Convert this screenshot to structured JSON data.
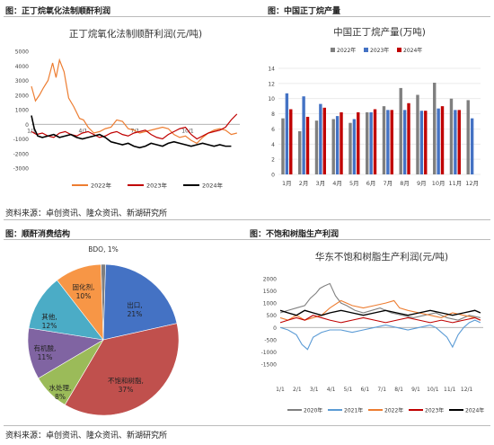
{
  "panels": {
    "p1_title": "图：正丁烷氧化法制顺酐利润",
    "p2_title": "图：中国正丁烷产量",
    "p3_title": "图：顺酐消费结构",
    "p4_title": "图：不饱和树脂生产利润"
  },
  "source_top": "资料来源：卓创资讯、隆众资讯、新湖研究所",
  "source_bottom": "资料来源：卓创资讯、隆众资讯、新湖研究所",
  "colors": {
    "c2020": "#808080",
    "c2021": "#5b9bd5",
    "c2022": "#ed7d31",
    "c2023": "#c00000",
    "c2024": "#000000",
    "bar2022": "#7f7f7f",
    "bar2023": "#4472c4",
    "bar2024": "#c00000"
  },
  "chart_data": [
    {
      "id": "profit",
      "type": "line",
      "title": "正丁烷氧化法制顺酐利润(元/吨)",
      "ylim": [
        -3000,
        5000
      ],
      "yticks": [
        "5000",
        "4000",
        "3000",
        "2000",
        "1000",
        "0",
        "-1000",
        "-2000",
        "-3000"
      ],
      "xticks": [
        "1/1",
        "4/1",
        "7/1",
        "10/1"
      ],
      "legend": [
        "2022年",
        "2023年",
        "2024年"
      ],
      "series": [
        {
          "name": "2022年",
          "x": [
            1,
            8,
            15,
            22,
            30,
            38,
            44,
            50,
            58,
            66,
            75,
            85,
            92,
            100,
            110,
            120,
            130,
            140,
            150,
            160,
            170,
            180,
            190,
            200,
            210,
            220,
            230,
            240,
            250,
            260,
            270,
            280,
            290,
            300,
            310,
            320,
            330,
            340,
            350,
            360
          ],
          "values": [
            2600,
            1600,
            2000,
            2500,
            3000,
            4200,
            3200,
            4400,
            3600,
            1800,
            1200,
            400,
            300,
            -200,
            -600,
            -500,
            -300,
            -200,
            300,
            200,
            -300,
            -400,
            -600,
            -500,
            -400,
            -300,
            -200,
            -300,
            -700,
            -900,
            -800,
            -1100,
            -1300,
            -900,
            -600,
            -400,
            -300,
            -400,
            -700,
            -600
          ]
        },
        {
          "name": "2023年",
          "x": [
            1,
            10,
            20,
            30,
            40,
            50,
            60,
            70,
            80,
            90,
            100,
            110,
            120,
            130,
            140,
            150,
            160,
            170,
            180,
            190,
            200,
            210,
            220,
            230,
            240,
            250,
            260,
            270,
            280,
            290,
            300,
            310,
            320,
            330,
            340,
            350,
            360
          ],
          "values": [
            -500,
            -700,
            -600,
            -800,
            -900,
            -600,
            -500,
            -700,
            -800,
            -600,
            -500,
            -700,
            -900,
            -800,
            -600,
            -500,
            -700,
            -800,
            -600,
            -500,
            -400,
            -700,
            -900,
            -1000,
            -700,
            -500,
            -300,
            -200,
            -700,
            -1000,
            -800,
            -600,
            -500,
            -400,
            -200,
            300,
            700
          ]
        },
        {
          "name": "2024年",
          "x": [
            1,
            6,
            12,
            20,
            30,
            40,
            50,
            60,
            70,
            80,
            90,
            100,
            110,
            120,
            130,
            140,
            150,
            160,
            170,
            180,
            190,
            200,
            210,
            220,
            230,
            240,
            250,
            260,
            270,
            280,
            290,
            300,
            310,
            320,
            330,
            340,
            350
          ],
          "values": [
            600,
            -300,
            -800,
            -900,
            -800,
            -700,
            -900,
            -800,
            -700,
            -900,
            -1000,
            -900,
            -800,
            -700,
            -900,
            -1200,
            -1300,
            -1400,
            -1300,
            -1500,
            -1600,
            -1500,
            -1300,
            -1400,
            -1500,
            -1300,
            -1200,
            -1300,
            -1400,
            -1500,
            -1400,
            -1300,
            -1400,
            -1500,
            -1400,
            -1500,
            -1500
          ]
        }
      ]
    },
    {
      "id": "output",
      "type": "bar",
      "title": "中国正丁烷产量(万吨)",
      "ylim": [
        0,
        14
      ],
      "yticks": [
        "14",
        "12",
        "10",
        "8",
        "6",
        "4",
        "2",
        "0"
      ],
      "categories": [
        "1月",
        "2月",
        "3月",
        "4月",
        "5月",
        "6月",
        "7月",
        "8月",
        "9月",
        "10月",
        "11月",
        "12月"
      ],
      "legend": [
        "2022年",
        "2023年",
        "2024年"
      ],
      "series": [
        {
          "name": "2022年",
          "values": [
            7.4,
            5.7,
            7.1,
            7.3,
            6.8,
            8.2,
            9.0,
            11.4,
            10.5,
            12.1,
            10.0,
            9.8
          ]
        },
        {
          "name": "2023年",
          "values": [
            10.7,
            10.3,
            9.3,
            7.7,
            7.3,
            8.2,
            8.5,
            8.5,
            8.4,
            8.7,
            8.5,
            7.4
          ]
        },
        {
          "name": "2024年",
          "values": [
            8.6,
            7.6,
            8.8,
            8.2,
            8.2,
            8.6,
            8.5,
            9.4,
            8.4,
            9.0,
            8.5,
            null
          ]
        }
      ]
    },
    {
      "id": "consumption",
      "type": "pie",
      "slices": [
        {
          "label": "BDO",
          "pct": "1%",
          "value": 1,
          "color": "#7f7f7f"
        },
        {
          "label": "出口",
          "pct": "21%",
          "value": 21,
          "color": "#4472c4"
        },
        {
          "label": "不饱和树脂",
          "pct": "37%",
          "value": 37,
          "color": "#c0504d"
        },
        {
          "label": "水处理",
          "pct": "8%",
          "value": 8,
          "color": "#9bbb59"
        },
        {
          "label": "有机酸",
          "pct": "11%",
          "value": 11,
          "color": "#8064a2"
        },
        {
          "label": "其他",
          "pct": "12%",
          "value": 12,
          "color": "#4bacc6"
        },
        {
          "label": "固化剂",
          "pct": "10%",
          "value": 10,
          "color": "#f79646"
        }
      ]
    },
    {
      "id": "resin",
      "type": "line",
      "title": "华东不饱和树脂生产利润(元/吨)",
      "ylim": [
        -1500,
        2000
      ],
      "yticks": [
        "2000",
        "1500",
        "1000",
        "500",
        "0",
        "-500",
        "-1000",
        "-1500"
      ],
      "xticks": [
        "1/1",
        "2/1",
        "3/1",
        "4/1",
        "5/1",
        "6/1",
        "7/1",
        "8/1",
        "9/1",
        "10/1",
        "11/1",
        "12/1"
      ],
      "legend": [
        "2020年",
        "2021年",
        "2022年",
        "2023年",
        "2024年"
      ],
      "series": [
        {
          "name": "2020年",
          "x": [
            1,
            15,
            30,
            45,
            55,
            65,
            72,
            80,
            90,
            100,
            110,
            120,
            135,
            150,
            165,
            180,
            200,
            220,
            240,
            260,
            280,
            300,
            320,
            340,
            360
          ],
          "values": [
            600,
            700,
            800,
            900,
            1200,
            1400,
            1600,
            1700,
            1800,
            1300,
            1000,
            900,
            700,
            600,
            700,
            800,
            600,
            500,
            400,
            500,
            600,
            400,
            300,
            500,
            400
          ]
        },
        {
          "name": "2021年",
          "x": [
            1,
            15,
            30,
            40,
            50,
            60,
            75,
            90,
            110,
            130,
            150,
            170,
            190,
            210,
            230,
            250,
            270,
            280,
            290,
            300,
            310,
            320,
            330,
            340,
            350,
            360
          ],
          "values": [
            0,
            -100,
            -300,
            -700,
            -900,
            -400,
            -200,
            -100,
            -100,
            -200,
            -100,
            0,
            100,
            0,
            -100,
            0,
            100,
            0,
            -200,
            -400,
            -800,
            -300,
            0,
            200,
            300,
            200
          ]
        },
        {
          "name": "2022年",
          "x": [
            1,
            15,
            30,
            45,
            60,
            75,
            90,
            110,
            130,
            150,
            170,
            190,
            205,
            215,
            230,
            250,
            270,
            290,
            310,
            330,
            350,
            360
          ],
          "values": [
            400,
            300,
            500,
            300,
            400,
            500,
            800,
            1100,
            900,
            800,
            900,
            1000,
            1100,
            800,
            700,
            600,
            500,
            400,
            600,
            500,
            400,
            300
          ]
        },
        {
          "name": "2023年",
          "x": [
            1,
            15,
            30,
            45,
            60,
            75,
            90,
            110,
            130,
            150,
            170,
            190,
            210,
            230,
            250,
            270,
            290,
            310,
            330,
            350,
            360
          ],
          "values": [
            200,
            300,
            400,
            300,
            500,
            400,
            300,
            200,
            300,
            400,
            300,
            200,
            300,
            400,
            300,
            200,
            300,
            200,
            300,
            400,
            300
          ]
        },
        {
          "name": "2024年",
          "x": [
            1,
            15,
            30,
            45,
            60,
            75,
            90,
            110,
            130,
            150,
            170,
            190,
            210,
            230,
            250,
            270,
            290,
            310,
            330,
            350,
            360
          ],
          "values": [
            700,
            600,
            500,
            700,
            600,
            500,
            600,
            700,
            600,
            500,
            600,
            700,
            600,
            500,
            600,
            700,
            600,
            500,
            600,
            700,
            600
          ]
        }
      ]
    }
  ]
}
